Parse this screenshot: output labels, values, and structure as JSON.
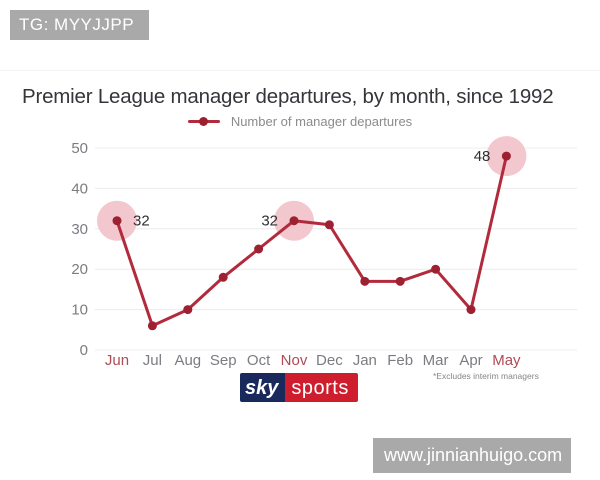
{
  "overlays": {
    "top_left_banner": "TG: MYYJJPP",
    "bottom_right_banner": "www.jinnianhuigo.com",
    "banner_bg_color": "#a9a9a9"
  },
  "logo": {
    "sky": "sky",
    "sports": "sports",
    "sky_bg_color": "#19295b",
    "sports_bg_color": "#ce1e2d"
  },
  "chart_data": {
    "type": "line",
    "title": "Premier League manager departures, by month, since 1992",
    "legend": "Number of manager departures",
    "legend_position": "top-center",
    "footnote": "*Excludes interim managers",
    "categories": [
      "Jun",
      "Jul",
      "Aug",
      "Sep",
      "Oct",
      "Nov",
      "Dec",
      "Jan",
      "Feb",
      "Mar",
      "Apr",
      "May"
    ],
    "values": [
      32,
      6,
      10,
      18,
      25,
      32,
      31,
      17,
      17,
      20,
      10,
      48
    ],
    "ylim": [
      0,
      50
    ],
    "yticks": [
      0,
      10,
      20,
      30,
      40,
      50
    ],
    "grid": "horizontal",
    "highlighted_months": [
      "Jun",
      "Nov",
      "May"
    ],
    "point_labels": [
      {
        "month": "Jun",
        "text": "32",
        "side": "right"
      },
      {
        "month": "Nov",
        "text": "32",
        "side": "left"
      },
      {
        "month": "May",
        "text": "48",
        "side": "left"
      }
    ],
    "colors": {
      "line": "#b12b3c",
      "point": "#9e2132",
      "highlight_circle": "#f2c7ce",
      "gridline": "#ececec",
      "axis_text": "#7b7b82",
      "month_highlight_text": "#b04a55",
      "label_text": "#2f2f34"
    }
  }
}
